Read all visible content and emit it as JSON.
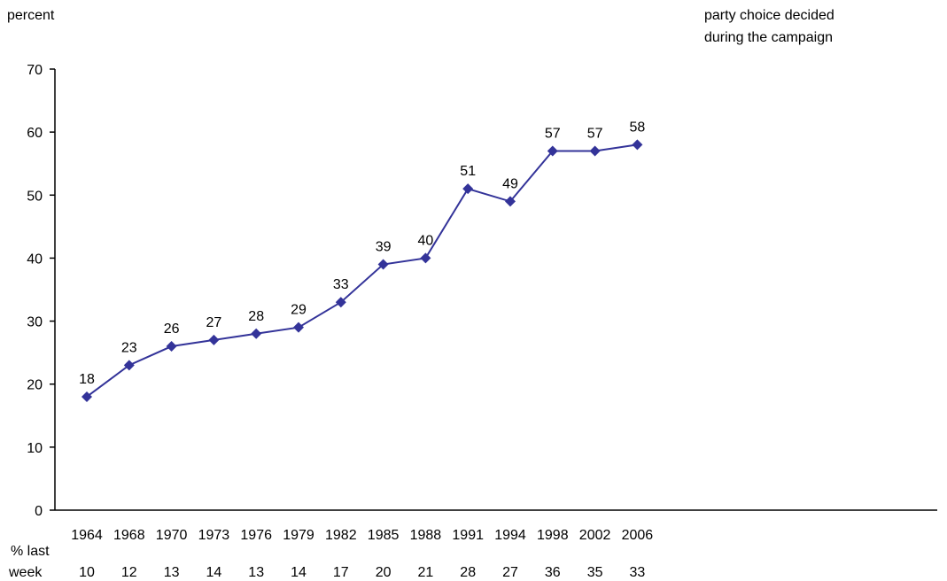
{
  "header": {
    "ylabel": "percent",
    "legend_line1": "party choice decided",
    "legend_line2": "during the campaign"
  },
  "extra_row": {
    "label_line1": "% last",
    "label_line2": "week",
    "values": [
      "10",
      "12",
      "13",
      "14",
      "13",
      "14",
      "17",
      "20",
      "21",
      "28",
      "27",
      "36",
      "35",
      "33"
    ]
  },
  "colors": {
    "line": "#333399",
    "marker": "#333399",
    "axis": "#000000"
  },
  "chart_data": {
    "type": "line",
    "categories": [
      "1964",
      "1968",
      "1970",
      "1973",
      "1976",
      "1979",
      "1982",
      "1985",
      "1988",
      "1991",
      "1994",
      "1998",
      "2002",
      "2006"
    ],
    "series": [
      {
        "name": "party choice decided during the campaign",
        "values": [
          18,
          23,
          26,
          27,
          28,
          29,
          33,
          39,
          40,
          51,
          49,
          57,
          57,
          58
        ]
      }
    ],
    "ylabel": "percent",
    "ylim": [
      0,
      70
    ],
    "yticks": [
      0,
      10,
      20,
      30,
      40,
      50,
      60,
      70
    ],
    "grid": false,
    "legend": "top-right"
  }
}
